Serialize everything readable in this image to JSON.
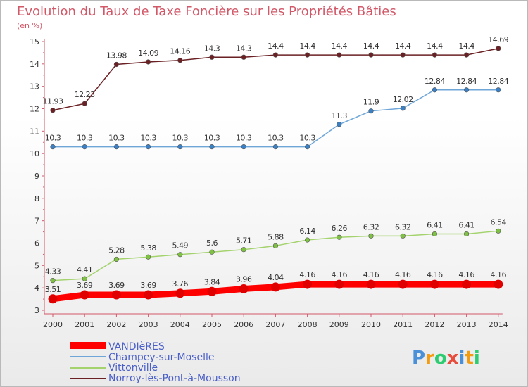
{
  "chart_data": {
    "type": "line",
    "title": "Evolution du Taux de Taxe Foncière sur les Propriétés Bâties",
    "unit_label": "(en %)",
    "xlabel": "",
    "ylabel": "(en %)",
    "x": [
      "2000",
      "2001",
      "2002",
      "2003",
      "2004",
      "2005",
      "2006",
      "2007",
      "2008",
      "2009",
      "2010",
      "2011",
      "2012",
      "2013",
      "2014"
    ],
    "ylim": [
      3,
      15
    ],
    "yticks": [
      "3",
      "4",
      "5",
      "6",
      "7",
      "8",
      "9",
      "10",
      "11",
      "12",
      "13",
      "14",
      "15"
    ],
    "grid": false,
    "legend_position": "bottom-left",
    "series": [
      {
        "name": "Norroy-lès-Pont-à-Mousson",
        "color": "#6b2024",
        "marker": "#6b2024",
        "values": [
          11.93,
          12.23,
          13.98,
          14.09,
          14.16,
          14.3,
          14.3,
          14.4,
          14.4,
          14.4,
          14.4,
          14.4,
          14.4,
          14.4,
          14.69
        ],
        "labels": [
          "11.93",
          "12.23",
          "13.98",
          "14.09",
          "14.16",
          "14.3",
          "14.3",
          "14.4",
          "14.4",
          "14.4",
          "14.4",
          "14.4",
          "14.4",
          "14.4",
          "14.69"
        ]
      },
      {
        "name": "Champey-sur-Moselle",
        "color": "#6ea6d8",
        "marker": "#3b7fc4",
        "values": [
          10.3,
          10.3,
          10.3,
          10.3,
          10.3,
          10.3,
          10.3,
          10.3,
          10.3,
          11.3,
          11.9,
          12.02,
          12.84,
          12.84,
          12.84
        ],
        "labels": [
          "10.3",
          "10.3",
          "10.3",
          "10.3",
          "10.3",
          "10.3",
          "10.3",
          "10.3",
          "10.3",
          "11.3",
          "11.9",
          "12.02",
          "12.84",
          "12.84",
          "12.84"
        ]
      },
      {
        "name": "Vittonville",
        "color": "#a4d36e",
        "marker": "#7fc143",
        "values": [
          4.33,
          4.41,
          5.28,
          5.38,
          5.49,
          5.6,
          5.71,
          5.88,
          6.14,
          6.26,
          6.32,
          6.32,
          6.41,
          6.41,
          6.54
        ],
        "labels": [
          "4.33",
          "4.41",
          "5.28",
          "5.38",
          "5.49",
          "5.6",
          "5.71",
          "5.88",
          "6.14",
          "6.26",
          "6.32",
          "6.32",
          "6.41",
          "6.41",
          "6.54"
        ]
      },
      {
        "name": "VANDIèRES",
        "color": "#ff0000",
        "marker": "#e00000",
        "values": [
          3.51,
          3.69,
          3.69,
          3.69,
          3.76,
          3.84,
          3.96,
          4.04,
          4.16,
          4.16,
          4.16,
          4.16,
          4.16,
          4.16,
          4.16
        ],
        "labels": [
          "3.51",
          "3.69",
          "3.69",
          "3.69",
          "3.76",
          "3.84",
          "3.96",
          "4.04",
          "4.16",
          "4.16",
          "4.16",
          "4.16",
          "4.16",
          "4.16",
          "4.16"
        ]
      }
    ],
    "legend": [
      "VANDIèRES",
      "Champey-sur-Moselle",
      "Vittonville",
      "Norroy-lès-Pont-à-Mousson"
    ]
  },
  "brand": {
    "letters": [
      "P",
      "r",
      "o",
      "x",
      "i",
      "t",
      "i"
    ],
    "colors": [
      "#4a90d9",
      "#f39c12",
      "#2ecc71",
      "#e74c3c",
      "#4a90d9",
      "#f39c12",
      "#2ecc71"
    ]
  }
}
